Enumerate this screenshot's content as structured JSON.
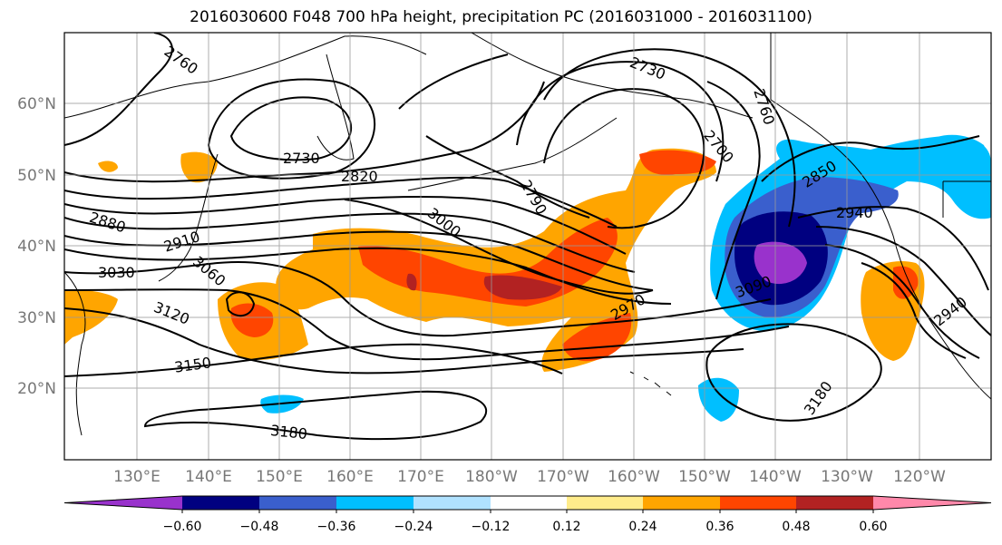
{
  "title": "2016030600 F048 700 hPa height, precipitation PC (2016031000 - 2016031100)",
  "map": {
    "lon_ticks": [
      "130°E",
      "140°E",
      "150°E",
      "160°E",
      "170°E",
      "180°W",
      "170°W",
      "160°W",
      "150°W",
      "140°W",
      "130°W",
      "120°W"
    ],
    "lat_ticks": [
      "60°N",
      "50°N",
      "40°N",
      "30°N",
      "20°N"
    ],
    "grid": true
  },
  "contour_labels": [
    "2760",
    "2730",
    "2820",
    "2880",
    "2910",
    "3030",
    "3060",
    "3120",
    "3150",
    "3180",
    "3000",
    "2790",
    "2700",
    "2730",
    "2760",
    "2850",
    "2940",
    "3090",
    "2970",
    "2940",
    "3180"
  ],
  "colorbar": {
    "tick_labels": [
      "−0.60",
      "−0.48",
      "−0.36",
      "−0.24",
      "−0.12",
      "0.12",
      "0.24",
      "0.36",
      "0.48",
      "0.60"
    ],
    "colors": [
      "#9932cc",
      "#000080",
      "#3a5fcd",
      "#00bfff",
      "#b0e2ff",
      "#ffffff",
      "#ffec8b",
      "#ffa500",
      "#ff4500",
      "#b22222",
      "#ff88aa"
    ]
  }
}
